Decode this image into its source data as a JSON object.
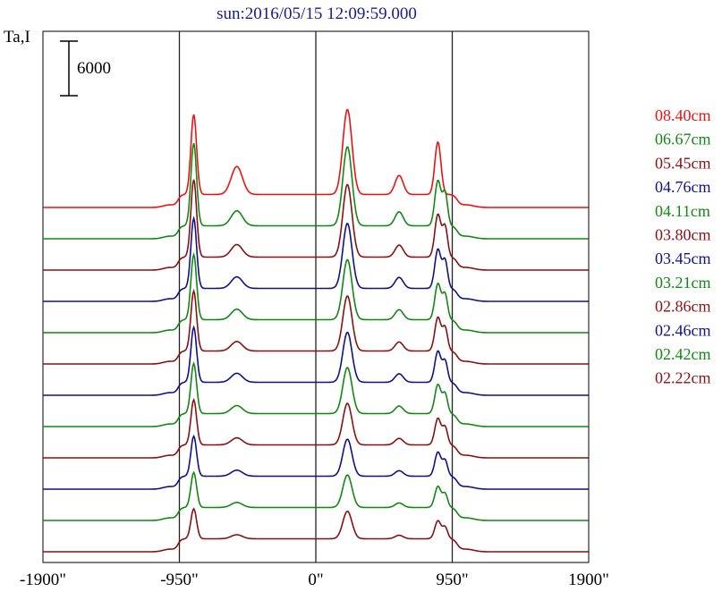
{
  "chart_data": {
    "type": "line",
    "title": "sun:2016/05/15 12:09:59.000",
    "ylabel": "Ta,I",
    "scale_bar_label": "6000",
    "xlabel": "",
    "x_tick_labels": [
      "-1900\"",
      "-950\"",
      "0\"",
      "950\"",
      "1900\""
    ],
    "x_ticks": [
      -1900,
      -950,
      0,
      950,
      1900
    ],
    "xlim": [
      -1900,
      1900
    ],
    "vertical_markers": [
      -950,
      0,
      950
    ],
    "profile_peaks_arcsec": [
      -850,
      -550,
      220,
      580,
      850,
      900
    ],
    "series": [
      {
        "name": "08.40cm",
        "color": "#ee1111",
        "peaks": [
          16000,
          5600,
          17000,
          3800,
          10500,
          0
        ]
      },
      {
        "name": "06.67cm",
        "color": "#118811",
        "peaks": [
          16500,
          3000,
          15800,
          2800,
          9000,
          6500
        ]
      },
      {
        "name": "05.45cm",
        "color": "#881111",
        "peaks": [
          15500,
          2500,
          14500,
          2400,
          8500,
          6000
        ]
      },
      {
        "name": "04.76cm",
        "color": "#111188",
        "peaks": [
          14000,
          2300,
          13000,
          2200,
          7800,
          5500
        ]
      },
      {
        "name": "04.11cm",
        "color": "#118811",
        "peaks": [
          13000,
          2100,
          12000,
          2000,
          7200,
          5000
        ]
      },
      {
        "name": "03.80cm",
        "color": "#881111",
        "peaks": [
          12000,
          1900,
          11000,
          1800,
          6700,
          4600
        ]
      },
      {
        "name": "03.45cm",
        "color": "#111188",
        "peaks": [
          11000,
          1800,
          10000,
          1700,
          6200,
          4200
        ]
      },
      {
        "name": "03.21cm",
        "color": "#118811",
        "peaks": [
          10000,
          1600,
          9200,
          1500,
          5800,
          3900
        ]
      },
      {
        "name": "02.86cm",
        "color": "#881111",
        "peaks": [
          9000,
          1400,
          8300,
          1300,
          5300,
          3500
        ]
      },
      {
        "name": "02.46cm",
        "color": "#111188",
        "peaks": [
          8000,
          1200,
          7400,
          1100,
          4800,
          3100
        ]
      },
      {
        "name": "02.42cm",
        "color": "#118811",
        "peaks": [
          7000,
          1000,
          6500,
          900,
          4200,
          2700
        ]
      },
      {
        "name": "02.22cm",
        "color": "#881111",
        "peaks": [
          6000,
          800,
          5500,
          700,
          3600,
          2300
        ]
      }
    ]
  },
  "colors": {
    "title": "#1a1a8c",
    "marker_line": "#222222",
    "frame": "#000000"
  }
}
